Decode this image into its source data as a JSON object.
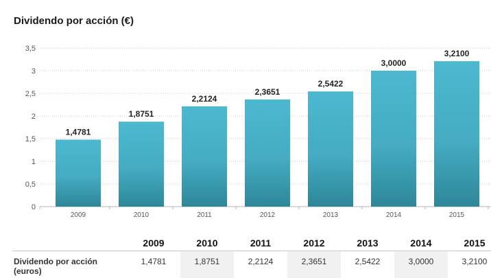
{
  "page_title": "Dividendo por acción (€)",
  "chart_data": {
    "type": "bar",
    "categories": [
      "2009",
      "2010",
      "2011",
      "2012",
      "2013",
      "2014",
      "2015"
    ],
    "values": [
      1.4781,
      1.8751,
      2.2124,
      2.3651,
      2.5422,
      3.0,
      3.21
    ],
    "value_labels": [
      "1,4781",
      "1,8751",
      "2,2124",
      "2,3651",
      "2,5422",
      "3,0000",
      "3,2100"
    ],
    "ylim": [
      0,
      3.5
    ],
    "yticks": [
      0,
      0.5,
      1,
      1.5,
      2,
      2.5,
      3,
      3.5
    ],
    "ytick_labels": [
      "0",
      "0,5",
      "1",
      "1,5",
      "2",
      "2,5",
      "3",
      "3,5"
    ],
    "grid": true,
    "bar_color_top": "#4cb8cf",
    "bar_color_bottom": "#2e8799"
  },
  "table": {
    "headers": [
      "2009",
      "2010",
      "2011",
      "2012",
      "2013",
      "2014",
      "2015"
    ],
    "row_label": "Dividendo por acción\n(euros)",
    "values": [
      "1,4781",
      "1,8751",
      "2,2124",
      "2,3651",
      "2,5422",
      "3,0000",
      "3,2100"
    ]
  }
}
